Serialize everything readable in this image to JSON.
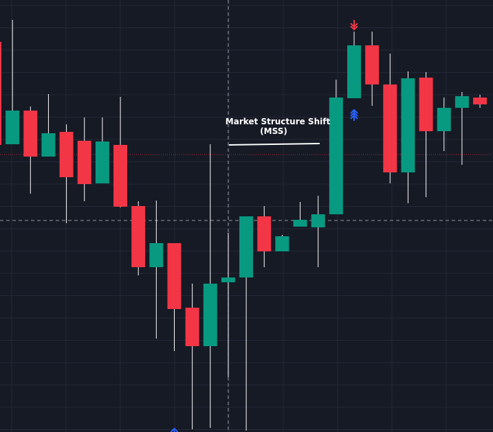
{
  "chart_data": {
    "type": "candlestick",
    "colors": {
      "background": "#161a25",
      "grid": "#242838",
      "up": "#089981",
      "down": "#f23645",
      "wick": "#ffffff",
      "crosshair": "#9598a1",
      "dotted_level": "#b22833",
      "blue_arrow": "#2962ff",
      "red_arrow": "#f23645",
      "annotation_text": "#ffffff",
      "annotation_line": "#ffffff"
    },
    "grid": true,
    "ylim": [
      0,
      629
    ],
    "candles": [
      {
        "o": 568,
        "c": 418,
        "h": 568,
        "l": 420
      },
      {
        "o": 419,
        "c": 468,
        "h": 600,
        "l": 419
      },
      {
        "o": 468,
        "c": 401,
        "h": 474,
        "l": 347
      },
      {
        "o": 401,
        "c": 435,
        "h": 492,
        "l": 401
      },
      {
        "o": 437,
        "c": 371,
        "h": 448,
        "l": 304
      },
      {
        "o": 424,
        "c": 361,
        "h": 458,
        "l": 336
      },
      {
        "o": 362,
        "c": 423,
        "h": 458,
        "l": 362
      },
      {
        "o": 418,
        "c": 328,
        "h": 488,
        "l": 327
      },
      {
        "o": 329,
        "c": 240,
        "h": 336,
        "l": 228
      },
      {
        "o": 240,
        "c": 275,
        "h": 337,
        "l": 136
      },
      {
        "o": 275,
        "c": 179,
        "h": 275,
        "l": 118
      },
      {
        "o": 181,
        "c": 125,
        "h": 216,
        "l": 4
      },
      {
        "o": 125,
        "c": 216,
        "h": 419,
        "l": 6
      },
      {
        "o": 218,
        "c": 225,
        "h": 290,
        "l": 80
      },
      {
        "o": 225,
        "c": 314,
        "h": 314,
        "l": 2
      },
      {
        "o": 314,
        "c": 263,
        "h": 329,
        "l": 240
      },
      {
        "o": 263,
        "c": 285,
        "h": 287,
        "l": 263
      },
      {
        "o": 299,
        "c": 309,
        "h": 335,
        "l": 299
      },
      {
        "o": 298,
        "c": 317,
        "h": 344,
        "l": 240
      },
      {
        "o": 317,
        "c": 487,
        "h": 513,
        "l": 317
      },
      {
        "o": 486,
        "c": 563,
        "h": 583,
        "l": 486
      },
      {
        "o": 563,
        "c": 506,
        "h": 583,
        "l": 475
      },
      {
        "o": 506,
        "c": 378,
        "h": 551,
        "l": 362
      },
      {
        "o": 378,
        "c": 515,
        "h": 525,
        "l": 333
      },
      {
        "o": 516,
        "c": 438,
        "h": 524,
        "l": 342
      },
      {
        "o": 438,
        "c": 472,
        "h": 487,
        "l": 409
      },
      {
        "o": 472,
        "c": 489,
        "h": 495,
        "l": 389
      },
      {
        "o": 487,
        "c": 477,
        "h": 491,
        "l": 472
      }
    ],
    "dotted_level": 404,
    "crosshair_level": 308,
    "crosshair_candle": 13,
    "annotation": {
      "line1": "Market Structure Shift",
      "line2": "(MSS)"
    },
    "up_arrows": [
      {
        "candle": 10,
        "style": "single",
        "level": -7
      },
      {
        "candle": 20,
        "style": "triple",
        "level": 453
      }
    ],
    "down_arrows": [
      {
        "candle": 20,
        "style": "double",
        "level": 600
      },
      {
        "candle": 21,
        "style": "single",
        "level": 563
      }
    ]
  }
}
